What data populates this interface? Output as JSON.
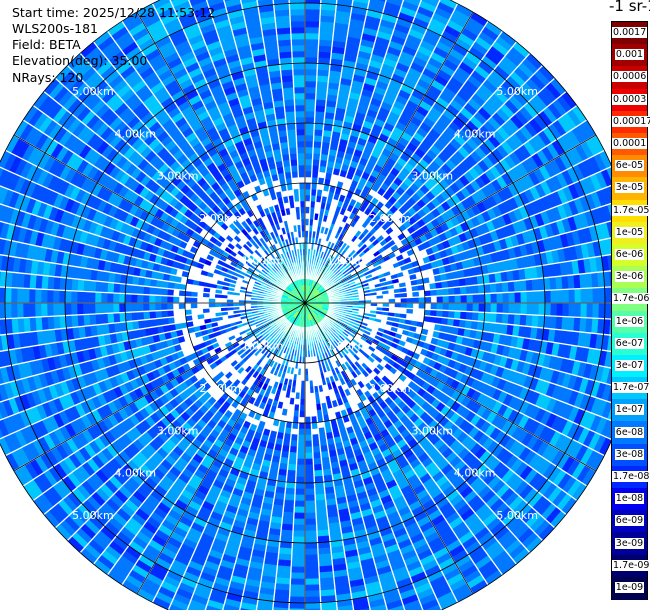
{
  "header": {
    "start_time": "Start time: 2025/12/28 11:53:12",
    "instrument": "WLS200s-181",
    "field": "Field: BETA",
    "elevation": "Elevation(deg): 35.00",
    "nrays": "NRays: 120"
  },
  "colorbar": {
    "title": "-1 sr-1",
    "labels": [
      "0.0017",
      "0.001",
      "0.0006",
      "0.0003",
      "0.00017",
      "0.0001",
      "6e-05",
      "3e-05",
      "1.7e-05",
      "1e-05",
      "6e-06",
      "3e-06",
      "1.7e-06",
      "1e-06",
      "6e-07",
      "3e-07",
      "1.7e-07",
      "1e-07",
      "6e-08",
      "3e-08",
      "1.7e-08",
      "1e-08",
      "6e-09",
      "3e-09",
      "1.7e-09",
      "1e-09"
    ],
    "colors": [
      "#7f0000",
      "#a00000",
      "#c80000",
      "#ee0000",
      "#ff2a00",
      "#ff5a00",
      "#ff8c00",
      "#ffb400",
      "#ffde00",
      "#f0f020",
      "#d4ff2a",
      "#aaff55",
      "#80ff80",
      "#55ffaa",
      "#2affd4",
      "#00f0ff",
      "#00c8ff",
      "#00a0ff",
      "#0078ff",
      "#0050ff",
      "#0028ff",
      "#0000ee",
      "#0000c0",
      "#000098",
      "#00006c",
      "#000050"
    ]
  },
  "range_ring_labels": [
    "1.00km",
    "2.00km",
    "3.00km",
    "4.00km",
    "5.00km"
  ],
  "chart_data": {
    "type": "heatmap",
    "projection": "polar PPI",
    "field": "BETA",
    "elevation_deg": 35.0,
    "n_rays": 120,
    "range_rings_km": [
      1,
      2,
      3,
      4,
      5
    ],
    "max_range_km": 5.6,
    "value_scale": "log",
    "value_range": [
      1e-09,
      0.0017
    ],
    "typical_values": [
      {
        "range_km": 0.3,
        "value": 1e-06
      },
      {
        "range_km": 0.8,
        "value": 1e-07
      },
      {
        "range_km": 1.5,
        "value": 3e-08
      },
      {
        "range_km": 3.0,
        "value": 6e-08
      },
      {
        "range_km": 5.0,
        "value": 6e-08
      }
    ]
  }
}
